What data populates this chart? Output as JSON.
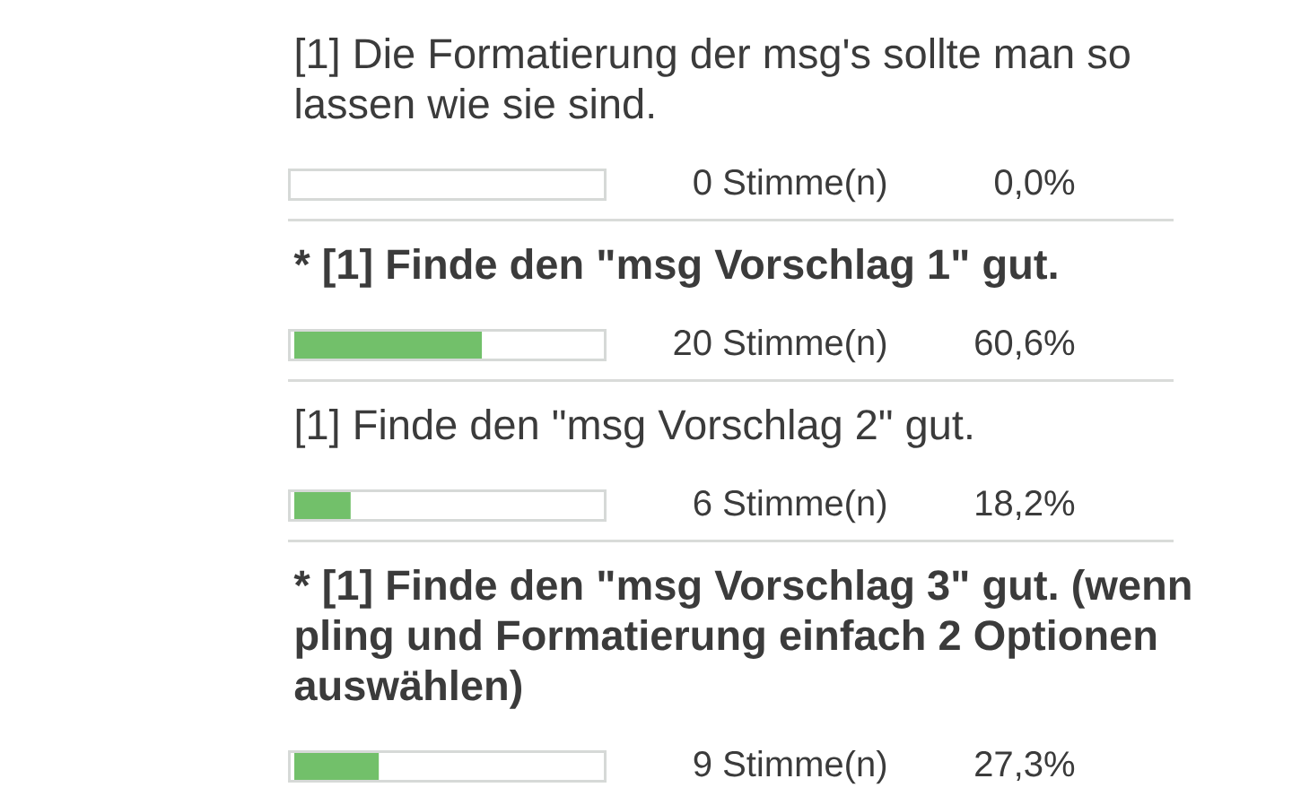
{
  "chart_data": {
    "type": "bar",
    "orientation": "horizontal",
    "categories": [
      "[1] Die Formatierung der msg's sollte man so lassen wie sie sind.",
      "* [1] Finde den \"msg Vorschlag 1\" gut.",
      "[1] Finde den \"msg Vorschlag 2\" gut.",
      "* [1] Finde den \"msg Vorschlag 3\" gut. (wenn pling und Formatierung einfach 2 Optionen auswählen)"
    ],
    "values": [
      0,
      60.6,
      18.2,
      27.3
    ],
    "value_labels": [
      "0,0%",
      "60,6%",
      "18,2%",
      "27,3%"
    ],
    "color": "#72c06a",
    "xlim": [
      0,
      100
    ],
    "tick_labels": "y",
    "annotations": [
      "0 Stimme(n)",
      "20 Stimme(n)",
      "6 Stimme(n)",
      "9 Stimme(n)"
    ]
  }
}
